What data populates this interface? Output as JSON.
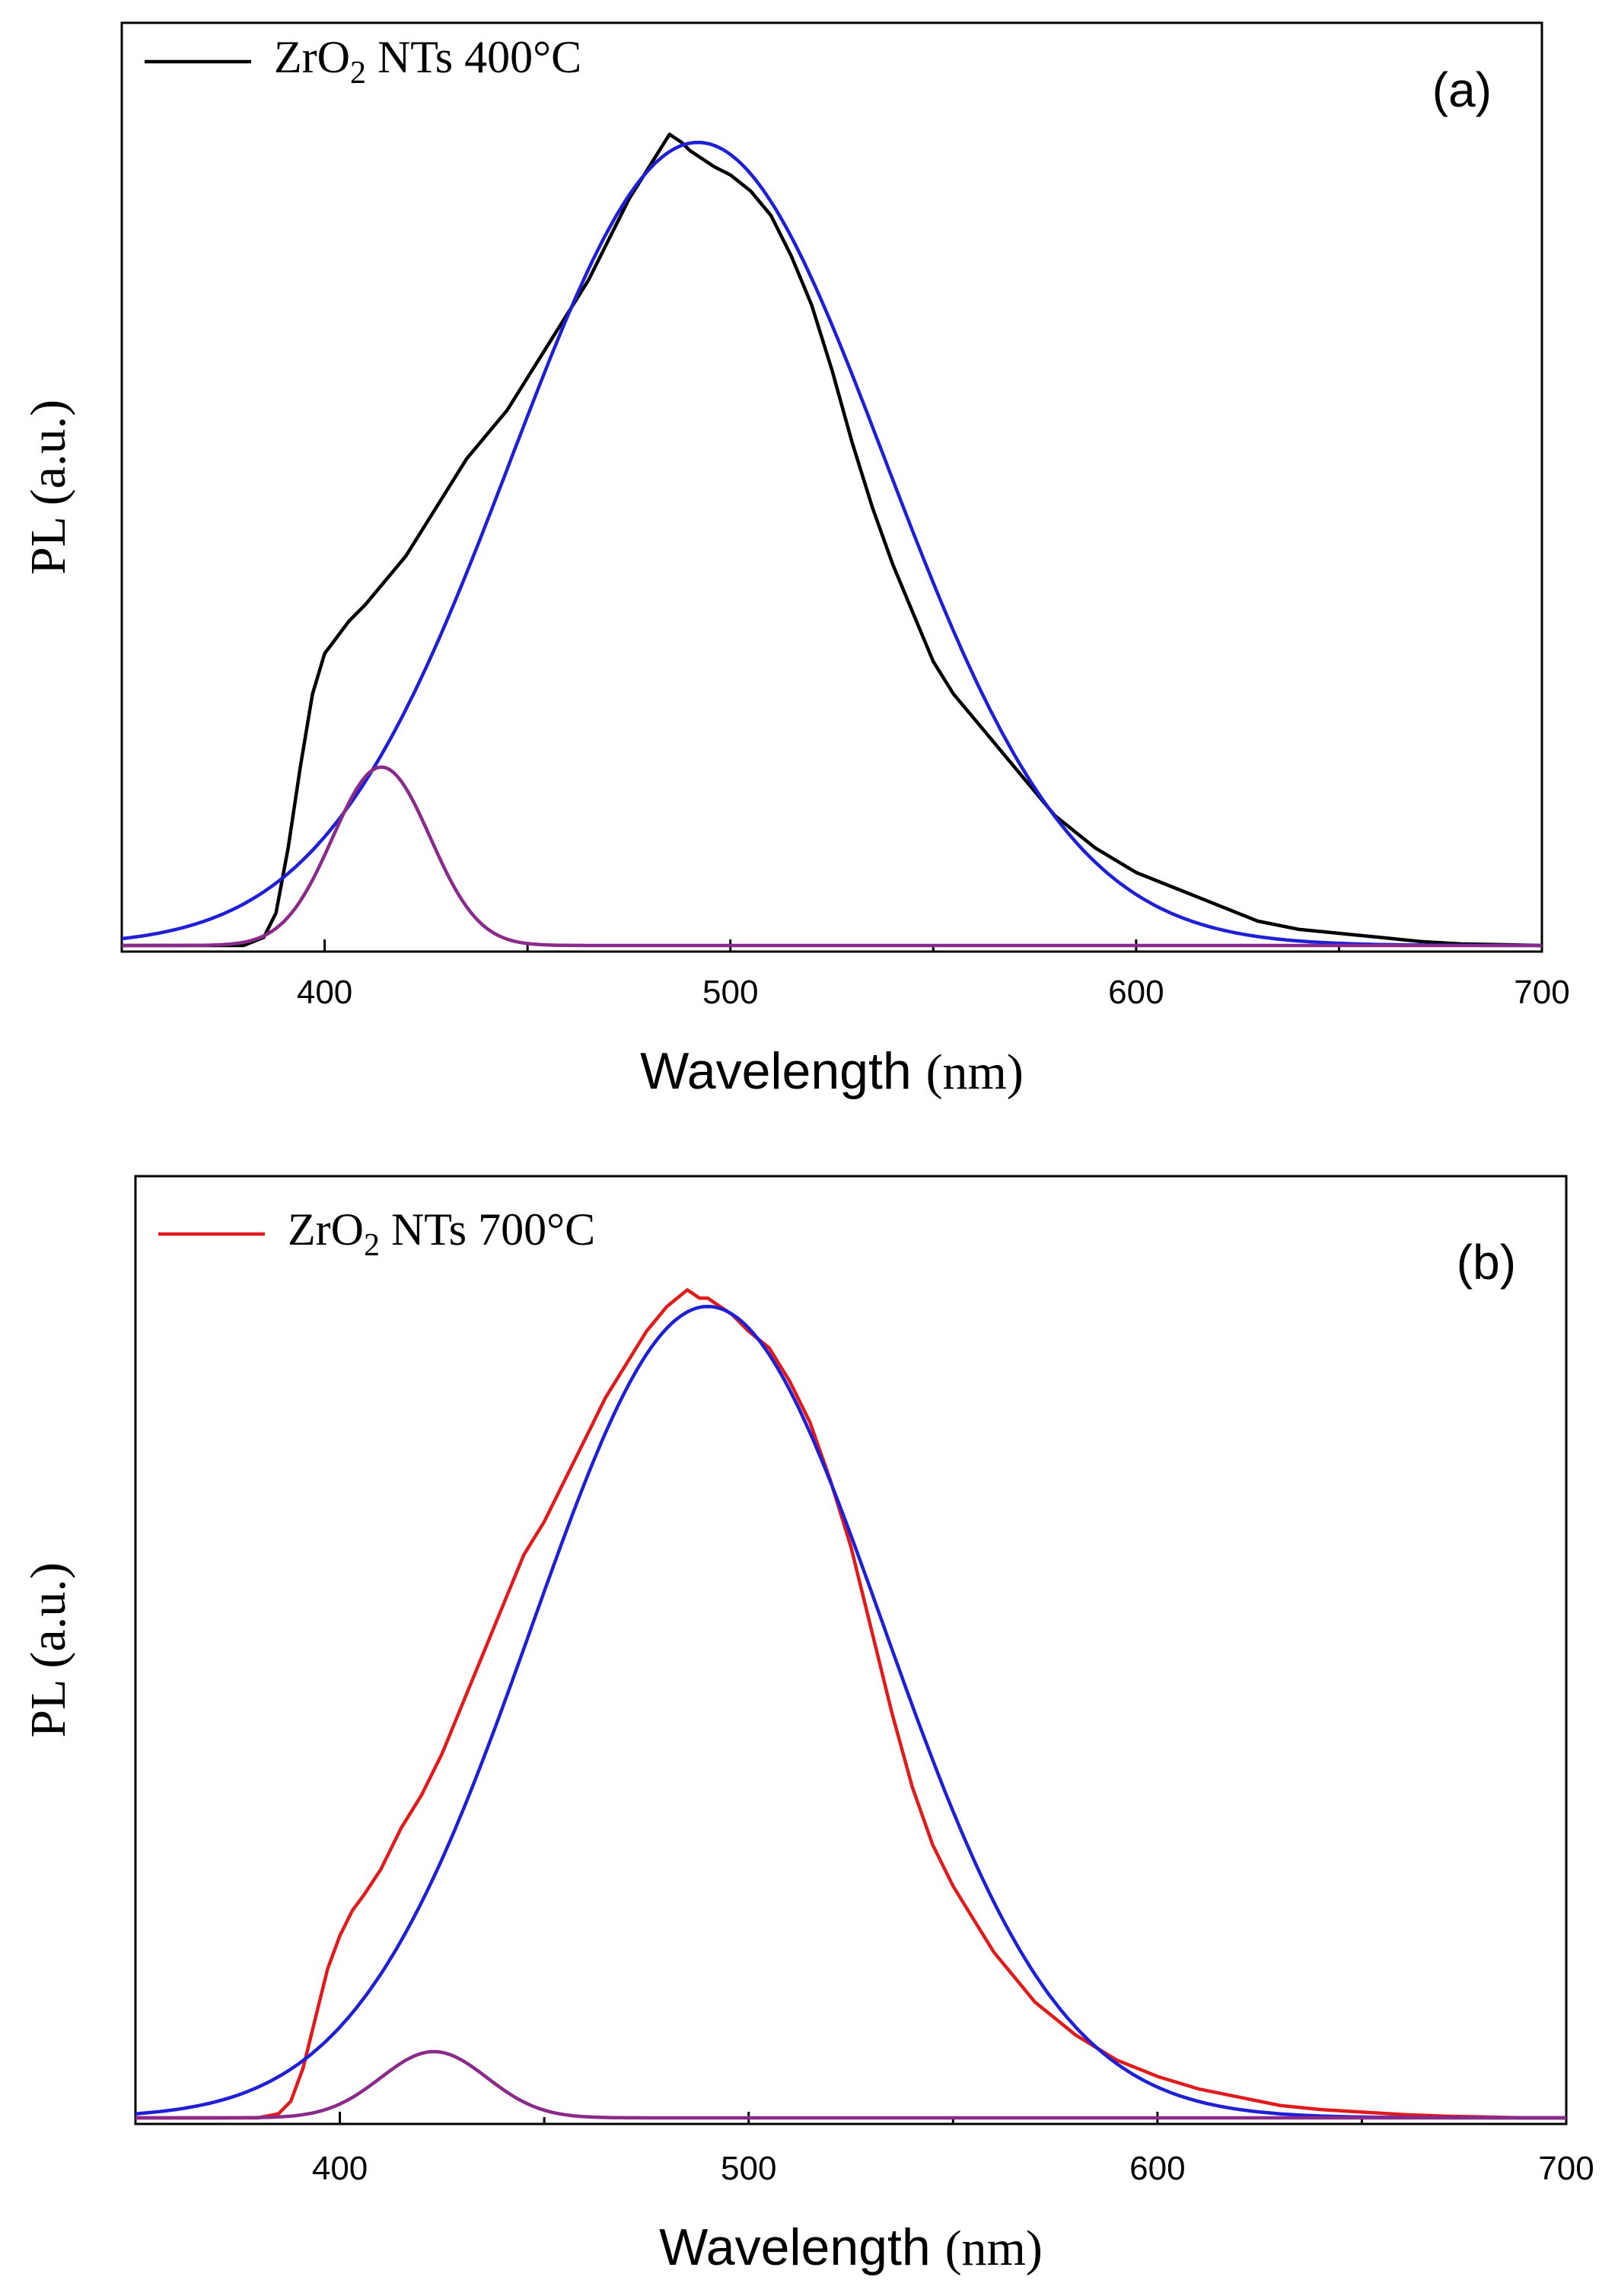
{
  "chart_data": [
    {
      "type": "line",
      "panel_label": "(a)",
      "xlabel_prefix": "Wavelength",
      "xlabel_unit": "(nm)",
      "ylabel": "PL (a.u.)",
      "xlim": [
        350,
        700
      ],
      "ylim": [
        0,
        1.0
      ],
      "xticks": [
        400,
        500,
        600,
        700
      ],
      "xtick_labels": [
        "400",
        "500",
        "600",
        "700"
      ],
      "y_tick_labels_shown": false,
      "grid": false,
      "legend_position": "top-left",
      "legend": {
        "text_main": "ZrO",
        "text_sub": "2",
        "text_rest": " NTs 400°C"
      },
      "series": [
        {
          "role": "measured",
          "color": "#000000",
          "x": [
            350,
            380,
            385,
            388,
            391,
            394,
            397,
            400,
            403,
            406,
            410,
            415,
            420,
            425,
            430,
            435,
            440,
            445,
            450,
            455,
            460,
            465,
            470,
            475,
            480,
            485,
            488,
            490,
            493,
            496,
            500,
            505,
            510,
            515,
            520,
            525,
            530,
            535,
            540,
            545,
            550,
            555,
            560,
            565,
            570,
            575,
            580,
            590,
            600,
            610,
            620,
            630,
            640,
            650,
            660,
            670,
            680,
            690,
            700
          ],
          "y": [
            0,
            0,
            0.01,
            0.04,
            0.12,
            0.22,
            0.31,
            0.36,
            0.38,
            0.4,
            0.42,
            0.45,
            0.48,
            0.52,
            0.56,
            0.6,
            0.63,
            0.66,
            0.7,
            0.74,
            0.78,
            0.82,
            0.87,
            0.92,
            0.96,
            1.0,
            0.99,
            0.98,
            0.97,
            0.96,
            0.95,
            0.93,
            0.9,
            0.85,
            0.79,
            0.71,
            0.62,
            0.54,
            0.47,
            0.41,
            0.35,
            0.31,
            0.28,
            0.25,
            0.22,
            0.19,
            0.16,
            0.12,
            0.09,
            0.07,
            0.05,
            0.03,
            0.02,
            0.015,
            0.01,
            0.005,
            0.002,
            0.001,
            0
          ]
        },
        {
          "role": "fit-peak",
          "color": "#1f1fd6",
          "center": 492,
          "amplitude": 0.99,
          "sigma": 46
        },
        {
          "role": "fit-peak",
          "color": "#8a2a8a",
          "center": 414,
          "amplitude": 0.22,
          "sigma": 12
        }
      ]
    },
    {
      "type": "line",
      "panel_label": "(b)",
      "xlabel_prefix": "Wavelength",
      "xlabel_unit": "(nm)",
      "ylabel": "PL (a.u.)",
      "xlim": [
        350,
        700
      ],
      "ylim": [
        0,
        1.0
      ],
      "xticks": [
        400,
        500,
        600,
        700
      ],
      "xtick_labels": [
        "400",
        "500",
        "600",
        "700"
      ],
      "y_tick_labels_shown": false,
      "grid": false,
      "legend_position": "top-left",
      "legend": {
        "text_main": "ZrO",
        "text_sub": "2",
        "text_rest": " NTs 700°C"
      },
      "series": [
        {
          "role": "measured",
          "color": "#e11b1b",
          "x": [
            350,
            380,
            385,
            388,
            391,
            394,
            397,
            400,
            403,
            406,
            410,
            415,
            420,
            425,
            430,
            435,
            440,
            445,
            450,
            455,
            460,
            465,
            470,
            475,
            480,
            485,
            488,
            490,
            493,
            496,
            500,
            505,
            510,
            515,
            520,
            525,
            530,
            535,
            540,
            545,
            550,
            555,
            560,
            565,
            570,
            575,
            580,
            590,
            600,
            610,
            620,
            630,
            640,
            650,
            660,
            670,
            680,
            690,
            700
          ],
          "y": [
            0,
            0,
            0.005,
            0.02,
            0.06,
            0.12,
            0.18,
            0.22,
            0.25,
            0.27,
            0.3,
            0.35,
            0.39,
            0.44,
            0.5,
            0.56,
            0.62,
            0.68,
            0.72,
            0.77,
            0.82,
            0.87,
            0.91,
            0.95,
            0.98,
            1.0,
            0.99,
            0.99,
            0.98,
            0.97,
            0.95,
            0.93,
            0.89,
            0.84,
            0.77,
            0.69,
            0.59,
            0.49,
            0.4,
            0.33,
            0.28,
            0.24,
            0.2,
            0.17,
            0.14,
            0.12,
            0.1,
            0.07,
            0.05,
            0.035,
            0.025,
            0.015,
            0.01,
            0.007,
            0.004,
            0.002,
            0.001,
            0,
            0
          ]
        },
        {
          "role": "fit-peak",
          "color": "#1f1fd6",
          "center": 490,
          "amplitude": 0.98,
          "sigma": 43
        },
        {
          "role": "fit-peak",
          "color": "#8a2a8a",
          "center": 423,
          "amplitude": 0.08,
          "sigma": 13
        }
      ]
    }
  ]
}
